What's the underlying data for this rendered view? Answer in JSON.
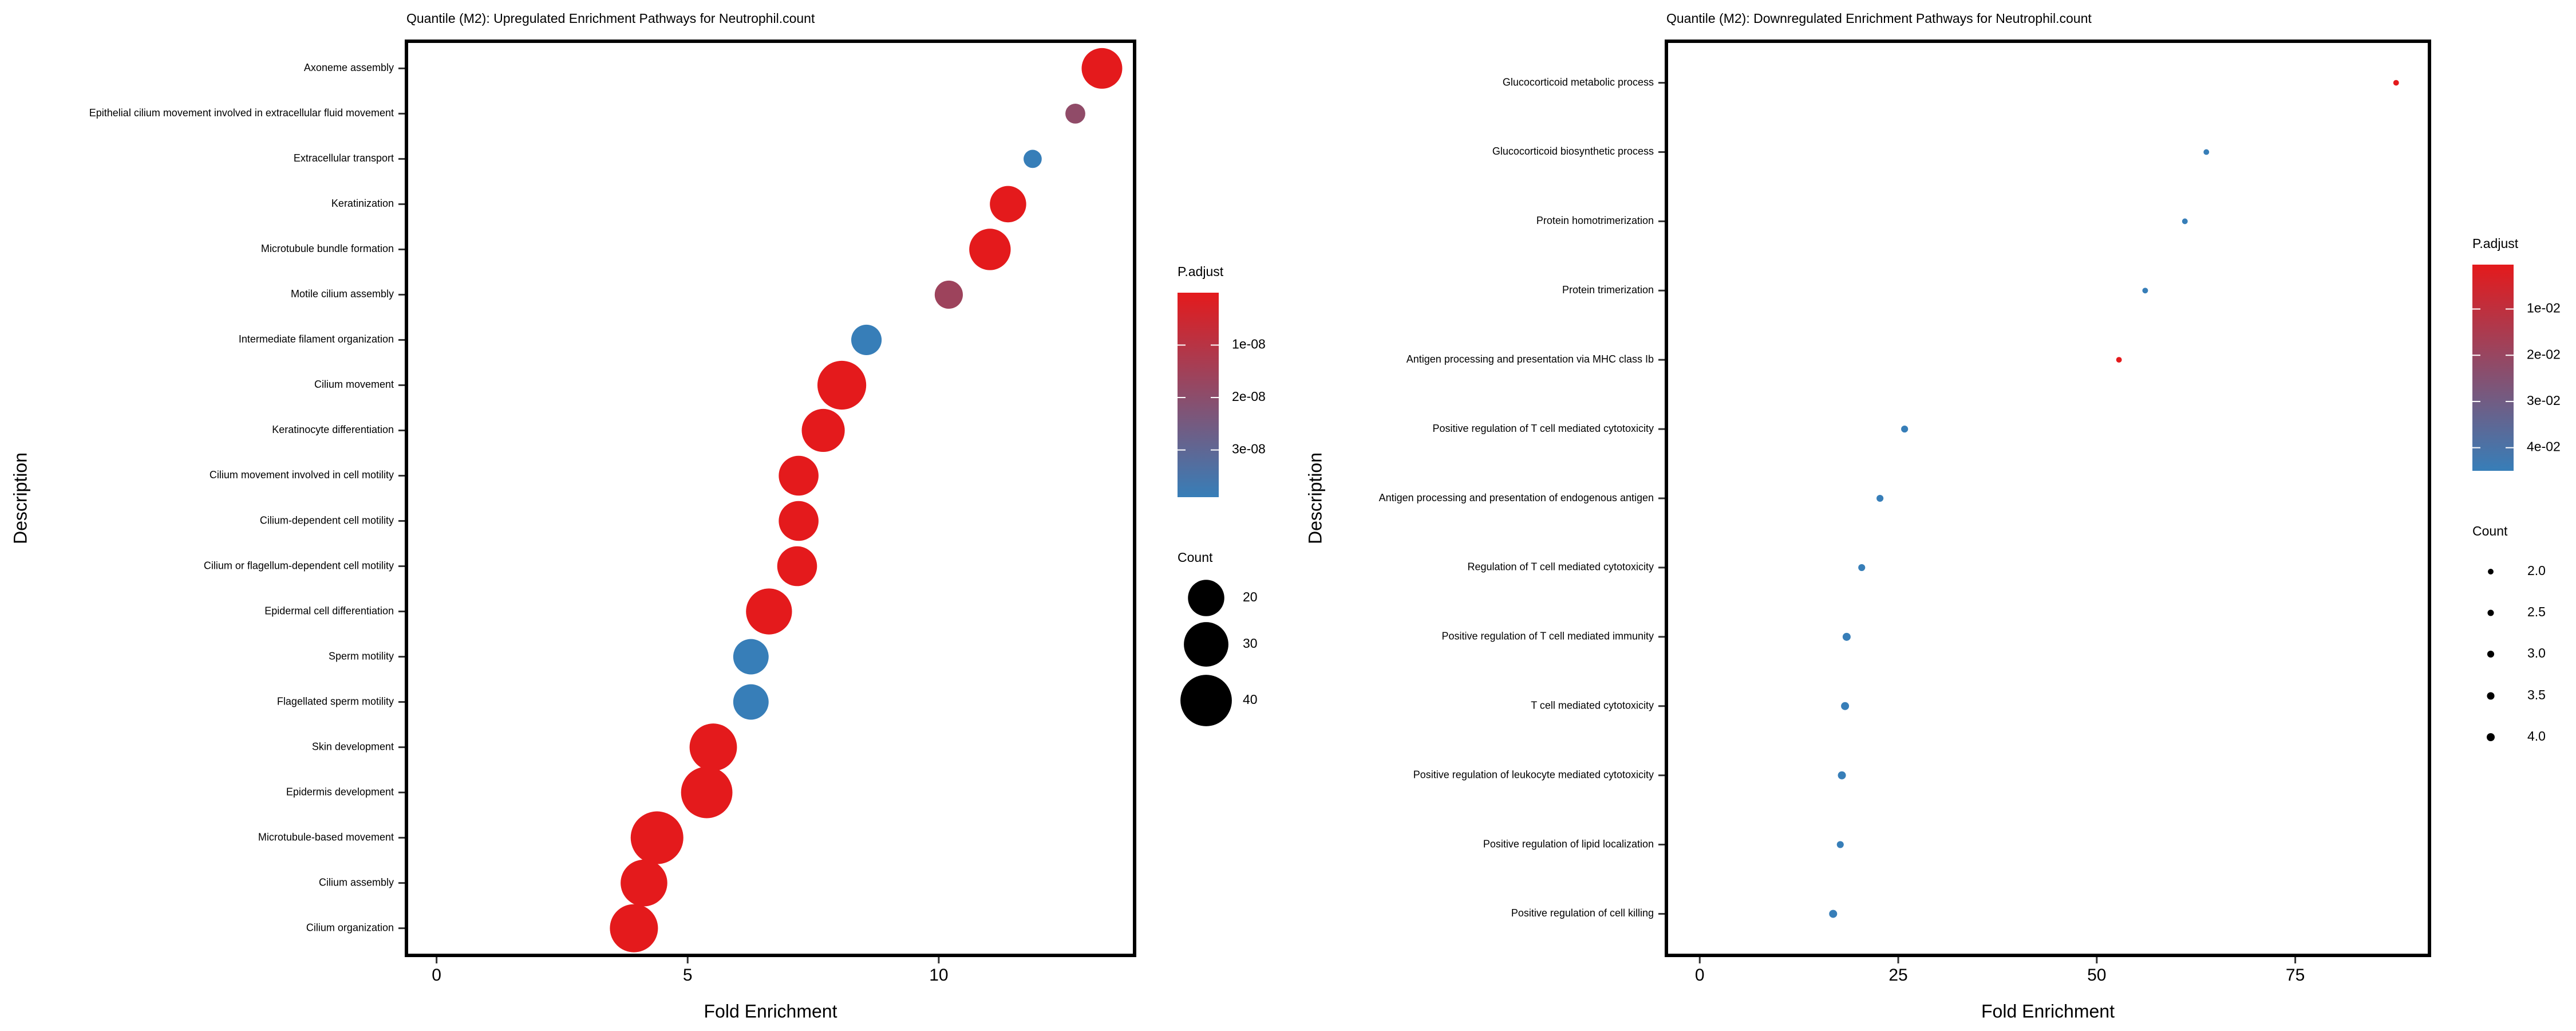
{
  "chart_data": [
    {
      "type": "dot",
      "title": "Quantile (M2): Upregulated Enrichment Pathways for Neutrophil.count",
      "xlabel": "Fold Enrichment",
      "ylabel": "Description",
      "categories": [
        "Axoneme assembly",
        "Epithelial cilium movement involved in extracellular fluid movement",
        "Extracellular transport",
        "Keratinization",
        "Microtubule bundle formation",
        "Motile cilium assembly",
        "Intermediate filament organization",
        "Cilium movement",
        "Keratinocyte differentiation",
        "Cilium movement involved in cell motility",
        "Cilium-dependent cell motility",
        "Cilium or flagellum-dependent cell motility",
        "Epidermal cell differentiation",
        "Sperm motility",
        "Flagellated sperm motility",
        "Skin development",
        "Epidermis development",
        "Microtubule-based movement",
        "Cilium assembly",
        "Cilium organization"
      ],
      "values": [
        13.25,
        12.72,
        11.87,
        11.38,
        11.02,
        10.2,
        8.56,
        8.07,
        7.7,
        7.21,
        7.21,
        7.18,
        6.62,
        6.26,
        6.26,
        5.51,
        5.38,
        4.39,
        4.13,
        3.93
      ],
      "counts": [
        25,
        6,
        5,
        20,
        26,
        12,
        14,
        36,
        28,
        24,
        24,
        24,
        32,
        19,
        19,
        34,
        40,
        42,
        33,
        35
      ],
      "p_adjust": [
        1e-11,
        1.9e-08,
        3.9e-08,
        1e-11,
        1e-11,
        1.6e-08,
        3.9e-08,
        1e-11,
        1e-11,
        1e-11,
        1e-11,
        1e-11,
        1e-11,
        3.9e-08,
        3.9e-08,
        1e-11,
        1e-11,
        1e-11,
        1e-11,
        1e-11
      ],
      "xlim": [
        -0.6,
        13.9
      ],
      "xticks": [
        0,
        5,
        10
      ],
      "color_title": "P.adjust",
      "color_low": "#e41a1c",
      "color_high": "#377eb8",
      "color_lim": [
        1e-11,
        3.9e-08
      ],
      "color_ticks": [
        {
          "value": 1e-08,
          "label": "1e-08"
        },
        {
          "value": 2e-08,
          "label": "2e-08"
        },
        {
          "value": 3e-08,
          "label": "3e-08"
        }
      ],
      "size_title": "Count",
      "size_ticks": [
        20,
        30,
        40
      ]
    },
    {
      "type": "dot",
      "title": "Quantile (M2): Downregulated Enrichment Pathways for Neutrophil.count",
      "xlabel": "Fold Enrichment",
      "ylabel": "Description",
      "categories": [
        "Glucocorticoid metabolic process",
        "Glucocorticoid biosynthetic process",
        "Protein homotrimerization",
        "Protein trimerization",
        "Antigen processing and presentation via MHC class Ib",
        "Positive regulation of T cell mediated cytotoxicity",
        "Antigen processing and presentation of endogenous antigen",
        "Regulation of T cell mediated cytotoxicity",
        "Positive regulation of T cell mediated immunity",
        "T cell mediated cytotoxicity",
        "Positive regulation of leukocyte mediated cytotoxicity",
        "Positive regulation of lipid localization",
        "Positive regulation of cell killing"
      ],
      "values": [
        87.7,
        63.8,
        61.1,
        56.1,
        52.8,
        25.8,
        22.7,
        20.4,
        18.5,
        18.3,
        17.9,
        17.7,
        16.8
      ],
      "counts": [
        2,
        2,
        2,
        2,
        2,
        3,
        3,
        3,
        4,
        4,
        4,
        3,
        4
      ],
      "p_adjust": [
        0.0004,
        0.045,
        0.045,
        0.045,
        0.0004,
        0.045,
        0.045,
        0.045,
        0.045,
        0.045,
        0.045,
        0.045,
        0.045
      ],
      "xlim": [
        -4.2,
        91.9
      ],
      "xticks": [
        0,
        25,
        50,
        75
      ],
      "color_title": "P.adjust",
      "color_low": "#e41a1c",
      "color_high": "#377eb8",
      "color_lim": [
        0.0004,
        0.045
      ],
      "color_ticks": [
        {
          "value": 0.01,
          "label": "1e-02"
        },
        {
          "value": 0.02,
          "label": "2e-02"
        },
        {
          "value": 0.03,
          "label": "3e-02"
        },
        {
          "value": 0.04,
          "label": "4e-02"
        }
      ],
      "size_title": "Count",
      "size_ticks": [
        {
          "value": 2,
          "label": "2.0"
        },
        {
          "value": 2.5,
          "label": "2.5"
        },
        {
          "value": 3,
          "label": "3.0"
        },
        {
          "value": 3.5,
          "label": "3.5"
        },
        {
          "value": 4,
          "label": "4.0"
        }
      ]
    }
  ]
}
